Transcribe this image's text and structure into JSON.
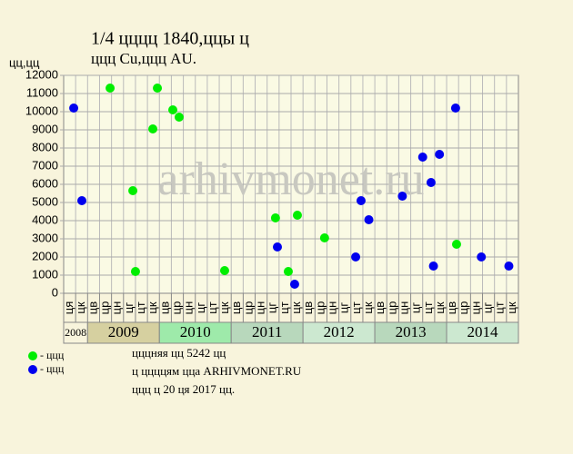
{
  "chart_data": {
    "type": "scatter",
    "title": "1/4 цццц 1840,ццы ц",
    "subtitle": "ццц Cu,ццц AU.",
    "y_label": "цц,цц",
    "watermark": "arhivmonet.ru",
    "categories": [
      "ця",
      "цк",
      "цв",
      "цр",
      "цн",
      "цг",
      "цт",
      "цк",
      "цв",
      "цр",
      "цн",
      "цг",
      "цт",
      "цк",
      "цв",
      "цр",
      "цн",
      "цг",
      "цт",
      "цк",
      "цв",
      "цр",
      "цн",
      "цг",
      "цт",
      "цк",
      "цв",
      "цр",
      "цн",
      "цг",
      "цт",
      "цк",
      "цв",
      "цр",
      "цн",
      "цг",
      "цт",
      "цк"
    ],
    "years": [
      {
        "label": "2008",
        "color": "#f8f4dc"
      },
      {
        "label": "2009",
        "color": "#d6d0a0"
      },
      {
        "label": "2010",
        "color": "#9eeaaa"
      },
      {
        "label": "2011",
        "color": "#b8d8bc"
      },
      {
        "label": "2012",
        "color": "#cce8d0"
      },
      {
        "label": "2013",
        "color": "#b8d8bc"
      },
      {
        "label": "2014",
        "color": "#cce8d0"
      }
    ],
    "xlim": [
      0,
      38
    ],
    "ylim": [
      0,
      12000
    ],
    "yticks": [
      0,
      1000,
      2000,
      3000,
      4000,
      5000,
      6000,
      7000,
      8000,
      9000,
      10000,
      11000,
      12000
    ],
    "grid": true,
    "series": [
      {
        "name": "- ццц",
        "color": "#00ee00",
        "x": [
          3.88,
          5.78,
          6.0,
          7.45,
          7.83,
          9.12,
          9.65,
          13.45,
          17.7,
          18.77,
          19.53,
          21.8,
          32.83
        ],
        "values": [
          11300,
          5650,
          1200,
          9050,
          11300,
          10100,
          9700,
          1250,
          4150,
          1200,
          4300,
          3050,
          2700
        ]
      },
      {
        "name": "- ццц",
        "color": "#0000ee",
        "x": [
          0.84,
          1.52,
          17.86,
          19.3,
          24.4,
          24.85,
          25.5,
          28.3,
          30.0,
          30.7,
          30.9,
          31.4,
          32.75,
          34.9,
          37.2
        ],
        "values": [
          10200,
          5100,
          2550,
          500,
          2000,
          5100,
          4050,
          5350,
          7500,
          6100,
          1500,
          7650,
          10200,
          2000,
          1500
        ]
      }
    ],
    "notes": [
      "цццняя цц 5242 цц",
      "ц ццццям цца ARHIVMONET.RU",
      "ццц ц 20 ця 2017 цц."
    ]
  }
}
